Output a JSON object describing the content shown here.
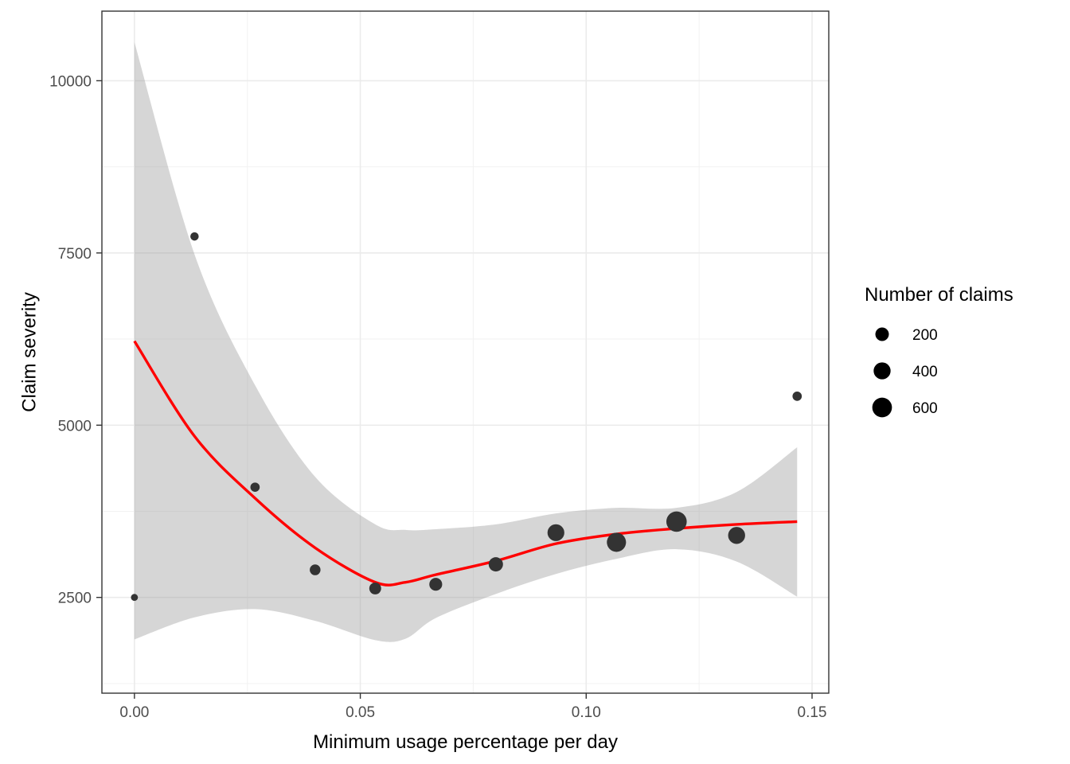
{
  "chart_data": {
    "type": "scatter",
    "xlabel": "Minimum usage percentage per day",
    "ylabel": "Claim severity",
    "xlim": [
      -0.0072,
      0.1537
    ],
    "ylim": [
      1110,
      11010
    ],
    "x_ticks": [
      0.0,
      0.05,
      0.1,
      0.15
    ],
    "x_tick_labels": [
      "0.00",
      "0.05",
      "0.10",
      "0.15"
    ],
    "y_ticks": [
      2500,
      5000,
      7500,
      10000
    ],
    "y_tick_labels": [
      "2500",
      "5000",
      "7500",
      "10000"
    ],
    "grid": true,
    "legend": {
      "title": "Number of claims",
      "placement": "right",
      "entries": [
        {
          "label": "200",
          "value": 200
        },
        {
          "label": "400",
          "value": 400
        },
        {
          "label": "600",
          "value": 600
        }
      ]
    },
    "points": [
      {
        "x": 0.0,
        "y": 2500,
        "n": 10
      },
      {
        "x": 0.0133,
        "y": 7740,
        "n": 30
      },
      {
        "x": 0.0267,
        "y": 4100,
        "n": 50
      },
      {
        "x": 0.04,
        "y": 2900,
        "n": 90
      },
      {
        "x": 0.0533,
        "y": 2630,
        "n": 130
      },
      {
        "x": 0.0667,
        "y": 2690,
        "n": 170
      },
      {
        "x": 0.08,
        "y": 2980,
        "n": 240
      },
      {
        "x": 0.0933,
        "y": 3440,
        "n": 390
      },
      {
        "x": 0.1067,
        "y": 3300,
        "n": 560
      },
      {
        "x": 0.12,
        "y": 3600,
        "n": 660
      },
      {
        "x": 0.1333,
        "y": 3400,
        "n": 400
      },
      {
        "x": 0.1467,
        "y": 5420,
        "n": 50
      }
    ],
    "smooth": {
      "color": "#ff0000",
      "x": [
        0.0,
        0.0133,
        0.0267,
        0.04,
        0.0533,
        0.06,
        0.0667,
        0.08,
        0.0933,
        0.1067,
        0.12,
        0.1333,
        0.1467
      ],
      "y": [
        6220,
        4840,
        3940,
        3220,
        2720,
        2720,
        2830,
        3030,
        3280,
        3420,
        3500,
        3560,
        3600
      ],
      "lower": [
        1890,
        2210,
        2330,
        2160,
        1880,
        1900,
        2200,
        2550,
        2840,
        3060,
        3200,
        3020,
        2510
      ],
      "upper": [
        10560,
        7480,
        5580,
        4250,
        3560,
        3480,
        3490,
        3560,
        3720,
        3800,
        3800,
        4030,
        4680
      ]
    }
  }
}
